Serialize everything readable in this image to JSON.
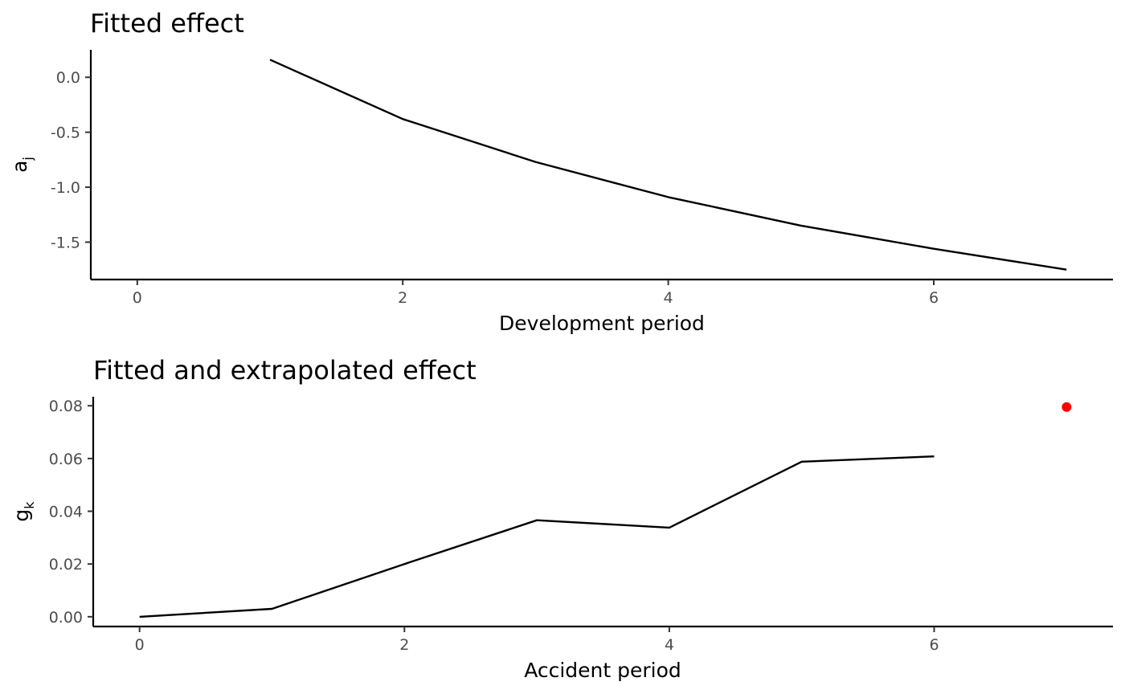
{
  "chart_data": [
    {
      "type": "line",
      "title": "Fitted effect",
      "xlabel": "Development period",
      "ylabel": "a",
      "ylabel_subscript": "j",
      "xlim": [
        -0.35,
        7.35
      ],
      "ylim": [
        -1.84,
        0.25
      ],
      "xticks": [
        0,
        2,
        4,
        6
      ],
      "xtick_labels": [
        "0",
        "2",
        "4",
        "6"
      ],
      "yticks": [
        0.0,
        -0.5,
        -1.0,
        -1.5
      ],
      "ytick_labels": [
        "0.0",
        "-0.5",
        "-1.0",
        "-1.5"
      ],
      "grid": false,
      "series": [
        {
          "color": "#000000",
          "x": [
            1,
            2,
            3,
            4,
            5,
            6,
            7
          ],
          "y": [
            0.16,
            -0.38,
            -0.77,
            -1.09,
            -1.35,
            -1.56,
            -1.75
          ]
        }
      ]
    },
    {
      "type": "line",
      "title": "Fitted and extrapolated effect",
      "xlabel": "Accident period",
      "ylabel": "g",
      "ylabel_subscript": "k",
      "xlim": [
        -0.35,
        7.35
      ],
      "ylim": [
        -0.0037,
        0.0834
      ],
      "xticks": [
        0,
        2,
        4,
        6
      ],
      "xtick_labels": [
        "0",
        "2",
        "4",
        "6"
      ],
      "yticks": [
        0.0,
        0.02,
        0.04,
        0.06,
        0.08
      ],
      "ytick_labels": [
        "0.00",
        "0.02",
        "0.04",
        "0.06",
        "0.08"
      ],
      "grid": false,
      "series": [
        {
          "color": "#000000",
          "x": [
            0,
            1,
            2,
            3,
            4,
            5,
            6
          ],
          "y": [
            0.0,
            0.003,
            0.02,
            0.0366,
            0.0338,
            0.0588,
            0.0608
          ]
        }
      ],
      "points": [
        {
          "color": "#ff0000",
          "x": 7,
          "y": 0.0795
        }
      ]
    }
  ]
}
